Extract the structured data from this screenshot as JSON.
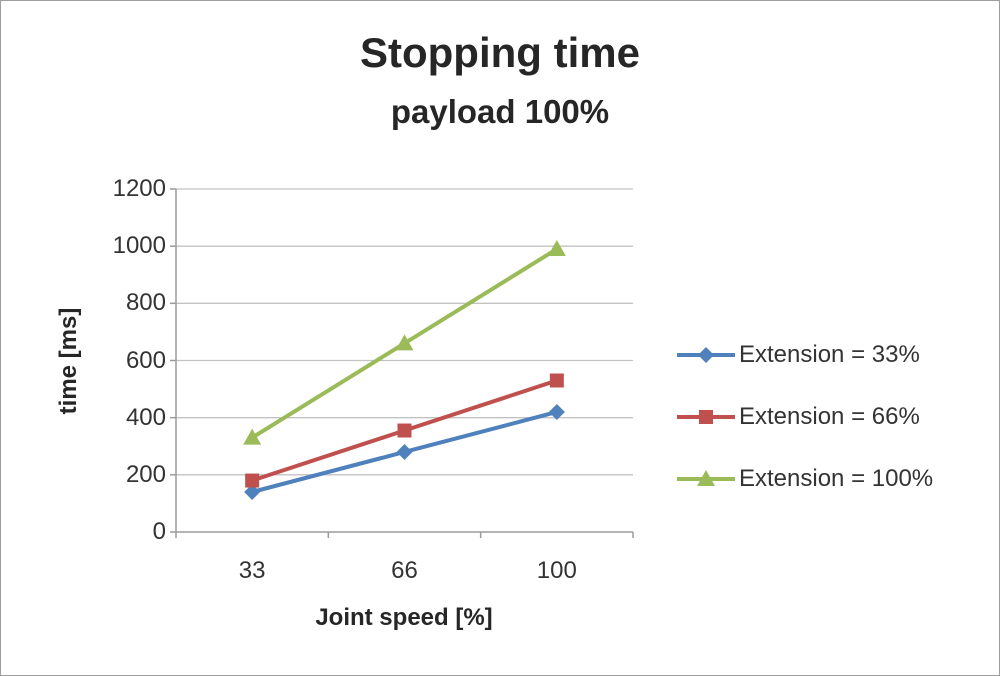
{
  "title": "Stopping time",
  "subtitle": "payload 100%",
  "chart_data": {
    "type": "line",
    "title": "Stopping time",
    "subtitle": "payload 100%",
    "xlabel": "Joint speed [%]",
    "ylabel": "time [ms]",
    "categories": [
      "33",
      "66",
      "100"
    ],
    "series": [
      {
        "name": "Extension = 33%",
        "color": "#4F81BD",
        "marker": "diamond",
        "values": [
          140,
          280,
          420
        ]
      },
      {
        "name": "Extension = 66%",
        "color": "#C0504D",
        "marker": "square",
        "values": [
          180,
          355,
          530
        ]
      },
      {
        "name": "Extension = 100%",
        "color": "#9BBB59",
        "marker": "triangle",
        "values": [
          330,
          660,
          990
        ]
      }
    ],
    "ylim": [
      0,
      1200
    ],
    "ytick_step": 200,
    "yticks": [
      0,
      200,
      400,
      600,
      800,
      1000,
      1200
    ],
    "grid": true,
    "legend_position": "right",
    "colors": {
      "gridline": "#c3c3c3",
      "axis": "#9b9b9b",
      "text": "#333333",
      "title_text": "#262626"
    }
  }
}
